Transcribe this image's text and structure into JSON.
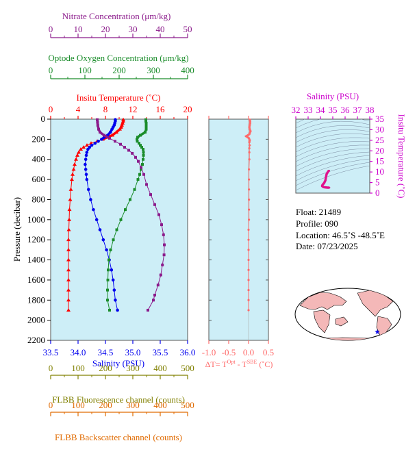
{
  "colors": {
    "nitrate": "#8b1a8b",
    "oxygen": "#1a8c2a",
    "temperature": "#ff0000",
    "salinity": "#0000ee",
    "fluorescence": "#808000",
    "backscatter": "#e06a00",
    "delta": "#ff6a6a",
    "ts": "#e0138c",
    "ts_axis": "#cc00cc",
    "plot_bg": "#cdeef7",
    "land": "#f4b8b8"
  },
  "axes": {
    "nitrate": {
      "label": "Nitrate Concentration (μm/kg)",
      "ticks": [
        "0",
        "10",
        "20",
        "30",
        "40",
        "50"
      ]
    },
    "oxygen": {
      "label": "Optode Oxygen Concentration (μm/kg)",
      "ticks": [
        "0",
        "100",
        "200",
        "300",
        "400"
      ]
    },
    "temperature": {
      "label": "Insitu Temperature (˚C)",
      "ticks": [
        "0",
        "4",
        "8",
        "12",
        "16",
        "20"
      ]
    },
    "pressure": {
      "label": "Pressure (decibar)",
      "ticks": [
        "0",
        "200",
        "400",
        "600",
        "800",
        "1000",
        "1200",
        "1400",
        "1600",
        "1800",
        "2000",
        "2200"
      ]
    },
    "salinity": {
      "label": "Salinity (PSU)",
      "ticks": [
        "33.5",
        "34.0",
        "34.5",
        "35.0",
        "35.5",
        "36.0"
      ]
    },
    "fluorescence": {
      "label": "FLBB Fluorescence channel (counts)",
      "ticks": [
        "0",
        "100",
        "200",
        "300",
        "400",
        "500"
      ]
    },
    "backscatter": {
      "label": "FLBB Backscatter channel (counts)",
      "ticks": [
        "0",
        "100",
        "200",
        "300",
        "400",
        "500"
      ]
    },
    "delta": {
      "ticks": [
        "-1.0",
        "-0.5",
        "0.0",
        "0.5"
      ],
      "label_prefix": "ΔT= T",
      "label_sup1": "Opt",
      "label_mid": " - T",
      "label_sup2": "SBE",
      "label_suffix": " (˚C)"
    },
    "ts_salinity": {
      "label": "Salinity (PSU)",
      "ticks": [
        "32",
        "33",
        "34",
        "35",
        "36",
        "37",
        "38"
      ]
    },
    "ts_temperature": {
      "label": "Insitu Temperature (˚C)",
      "ticks": [
        "0",
        "5",
        "10",
        "15",
        "20",
        "25",
        "30",
        "35"
      ]
    }
  },
  "info": {
    "float": "Float:  21489",
    "profile": "Profile:  090",
    "location": "Location:  46.5˚S  -48.5˚E",
    "date": "Date:  07/23/2025"
  },
  "chart_data": [
    {
      "type": "line",
      "name": "main-profile",
      "y_axis": "Pressure (decibar)",
      "ylim": [
        0,
        2200
      ],
      "y_inverted": true,
      "series": [
        {
          "name": "Insitu Temperature",
          "axis": "temperature",
          "xlim": [
            0,
            20
          ],
          "pressure": [
            5,
            20,
            40,
            60,
            80,
            100,
            130,
            160,
            180,
            200,
            220,
            240,
            260,
            280,
            300,
            330,
            360,
            400,
            450,
            500,
            550,
            600,
            700,
            800,
            900,
            1000,
            1100,
            1200,
            1300,
            1400,
            1500,
            1600,
            1700,
            1800,
            1900
          ],
          "values": [
            10.6,
            10.6,
            10.5,
            10.4,
            10.3,
            10.1,
            9.6,
            9.0,
            8.3,
            7.6,
            6.8,
            5.9,
            5.3,
            4.8,
            4.4,
            4.1,
            3.9,
            3.7,
            3.5,
            3.35,
            3.2,
            3.1,
            2.95,
            2.85,
            2.75,
            2.7,
            2.65,
            2.6,
            2.6,
            2.6,
            2.6,
            2.6,
            2.6,
            2.6,
            2.6
          ]
        },
        {
          "name": "Salinity",
          "axis": "salinity",
          "xlim": [
            33.5,
            36.0
          ],
          "pressure": [
            5,
            20,
            40,
            60,
            80,
            100,
            130,
            160,
            180,
            200,
            220,
            240,
            260,
            280,
            300,
            330,
            360,
            400,
            450,
            500,
            550,
            600,
            700,
            800,
            900,
            1000,
            1100,
            1200,
            1300,
            1400,
            1500,
            1600,
            1700,
            1800,
            1900
          ],
          "values": [
            34.68,
            34.68,
            34.67,
            34.66,
            34.64,
            34.62,
            34.59,
            34.54,
            34.48,
            34.43,
            34.37,
            34.31,
            34.25,
            34.21,
            34.18,
            34.16,
            34.15,
            34.14,
            34.13,
            34.14,
            34.15,
            34.16,
            34.19,
            34.23,
            34.28,
            34.34,
            34.4,
            34.46,
            34.52,
            34.57,
            34.61,
            34.64,
            34.66,
            34.68,
            34.72
          ]
        },
        {
          "name": "Optode Oxygen Concentration",
          "axis": "oxygen",
          "xlim": [
            0,
            400
          ],
          "pressure": [
            5,
            20,
            40,
            60,
            80,
            100,
            130,
            160,
            180,
            200,
            220,
            240,
            260,
            280,
            300,
            330,
            360,
            400,
            450,
            500,
            550,
            600,
            700,
            800,
            900,
            1000,
            1100,
            1200,
            1300,
            1400,
            1500,
            1600,
            1700,
            1800,
            1900
          ],
          "values": [
            278,
            278,
            279,
            279,
            279,
            279,
            276,
            262,
            254,
            252,
            253,
            258,
            262,
            266,
            270,
            271,
            271,
            270,
            268,
            264,
            260,
            255,
            245,
            232,
            218,
            205,
            193,
            183,
            175,
            170,
            168,
            167,
            166,
            166,
            172
          ]
        },
        {
          "name": "Nitrate Concentration",
          "axis": "nitrate",
          "xlim": [
            0,
            50
          ],
          "pressure": [
            5,
            30,
            60,
            100,
            130,
            160,
            190,
            220,
            250,
            280,
            310,
            340,
            380,
            420,
            480,
            550,
            650,
            750,
            850,
            950,
            1050,
            1150,
            1250,
            1350,
            1450,
            1550,
            1650,
            1750,
            1800,
            1900
          ],
          "values": [
            17.0,
            17.1,
            17.2,
            17.5,
            18.0,
            19.5,
            21.5,
            23.5,
            25.5,
            27.0,
            28.5,
            29.8,
            31.0,
            32.0,
            33.0,
            34.0,
            35.0,
            36.5,
            38.0,
            39.5,
            40.5,
            41.2,
            41.5,
            41.4,
            40.8,
            40.2,
            39.2,
            38.0,
            37.5,
            35.5
          ]
        }
      ]
    },
    {
      "type": "line",
      "name": "delta-T",
      "xlim": [
        -1.0,
        0.5
      ],
      "ylim": [
        0,
        2200
      ],
      "pressure": [
        5,
        20,
        40,
        60,
        80,
        100,
        120,
        150,
        170,
        190,
        210,
        230,
        260,
        290,
        330,
        400,
        500,
        600,
        700,
        800,
        900,
        1000,
        1100,
        1200,
        1300,
        1400,
        1500,
        1600,
        1700,
        1800,
        1900
      ],
      "values": [
        0.03,
        0.04,
        0.04,
        0.03,
        0.02,
        0.03,
        0.05,
        0.02,
        -0.06,
        0.01,
        0.03,
        0.02,
        0.03,
        0.02,
        0.02,
        0.02,
        0.01,
        0.01,
        0.01,
        0.01,
        0.01,
        0.01,
        0.0,
        0.0,
        0.0,
        0.0,
        0.0,
        0.0,
        0.0,
        0.0,
        0.0
      ]
    },
    {
      "type": "scatter",
      "name": "T-S diagram",
      "xlim": [
        32,
        38
      ],
      "ylim": [
        0,
        35
      ],
      "x": [
        34.7,
        34.65,
        34.6,
        34.5,
        34.45,
        34.4,
        34.3,
        34.2,
        34.15,
        34.14,
        34.2,
        34.3,
        34.45,
        34.6,
        34.68,
        34.72
      ],
      "y": [
        10.6,
        10.4,
        10.0,
        9.0,
        7.6,
        6.0,
        4.8,
        4.1,
        3.7,
        3.3,
        3.0,
        2.8,
        2.7,
        2.6,
        2.6,
        2.6
      ]
    }
  ]
}
